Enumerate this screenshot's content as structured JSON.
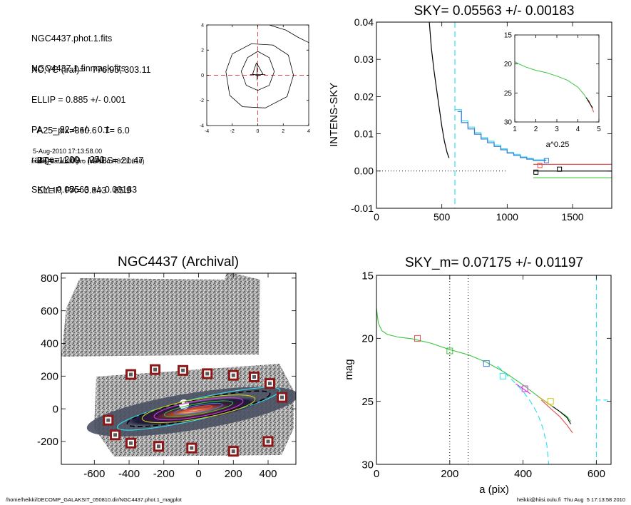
{
  "info": {
    "lines_a": [
      "NGC4437.phot.1.fits",
      "NGC4437.1.finmask.fits"
    ],
    "lines_b": [
      "XC,YC (iraf)=   776.95, 303.11",
      "ELLIP = 0.885 +/- 0.001",
      "PA    = 82.4 +/-   0.1",
      "range=  200.-  250.",
      "SKY= 0.05563 +/- 0.00183"
    ],
    "lines_c": [
      "A25_pix=360.6   T= 6.0",
      "BT=  11.09   MABS=-21.47",
      "ELLIP, PA= 0.843   85.9"
    ],
    "date": "5-Aug-2010 17:13:58.00",
    "program": "make_datalist0.pro (version HS230610)"
  },
  "footer": {
    "left": "/home/heikki/DECOMP_GALAKSIT_050810.dir/NGC4437.phot.1_magplot",
    "right": "heikki@hiisi.oulu.fi  Thu Aug  5 17:13:58 2010"
  },
  "colors": {
    "cyan": "#33e0ee",
    "red": "#e24a4a",
    "green": "#3ec43e",
    "blue": "#3a78d6",
    "magenta": "#d23ad2",
    "yellow": "#c7c71c",
    "marker_dark": "#8c1717"
  },
  "chart_data": [
    {
      "id": "centering",
      "type": "contour",
      "xlim": [
        -4,
        4
      ],
      "ylim": [
        -4,
        4
      ],
      "xticks": [
        -4,
        -2,
        0,
        2,
        4
      ],
      "yticks": [
        -4,
        -2,
        0,
        2,
        4
      ],
      "contours": [
        [
          [
            -0.1,
            1.0
          ],
          [
            0.4,
            0.1
          ],
          [
            0,
            -0.05
          ],
          [
            -0.4,
            0.1
          ],
          [
            -0.1,
            1.0
          ]
        ],
        [
          [
            -1.3,
            0.3
          ],
          [
            -0.8,
            1.4
          ],
          [
            0,
            1.9
          ],
          [
            0.9,
            1.4
          ],
          [
            1.3,
            0.3
          ],
          [
            0.9,
            -0.8
          ],
          [
            0,
            -1.2
          ],
          [
            -0.9,
            -0.8
          ],
          [
            -1.3,
            0.3
          ]
        ],
        [
          [
            -2.5,
            0.3
          ],
          [
            -2.0,
            1.7
          ],
          [
            -0.5,
            2.5
          ],
          [
            1.2,
            2.4
          ],
          [
            2.4,
            1.6
          ],
          [
            2.8,
            0.0
          ],
          [
            2.3,
            -1.7
          ],
          [
            0.6,
            -2.6
          ],
          [
            -1.2,
            -2.5
          ],
          [
            -2.2,
            -1.6
          ],
          [
            -2.5,
            0.3
          ]
        ],
        [
          [
            0.9,
            4.0
          ],
          [
            2.2,
            3.6
          ],
          [
            3.2,
            3.0
          ],
          [
            4.0,
            2.6
          ]
        ]
      ]
    },
    {
      "id": "sky",
      "type": "line",
      "title": "SKY= 0.05563 +/- 0.00183",
      "ylabel": "INTENS-SKY",
      "xlim": [
        0,
        1800
      ],
      "ylim": [
        -0.01,
        0.04
      ],
      "xticks": [
        0,
        500,
        1000,
        1500
      ],
      "yticks": [
        -0.01,
        0.0,
        0.01,
        0.02,
        0.03,
        0.04
      ],
      "ytick_labels": [
        "-0.01",
        "0.00",
        "0.01",
        "0.02",
        "0.03",
        "0.04"
      ],
      "vline": 600,
      "series": [
        {
          "color": "#000000",
          "x": [
            400,
            420,
            440,
            460,
            480,
            500,
            520,
            540,
            555
          ],
          "y": [
            0.042,
            0.033,
            0.027,
            0.022,
            0.017,
            0.012,
            0.008,
            0.005,
            0.0035
          ]
        },
        {
          "color": "#33e0ee",
          "x": [
            600,
            650,
            650,
            700,
            700,
            750,
            750,
            800,
            800,
            850,
            850,
            900,
            900,
            950,
            950,
            1000,
            1000,
            1050,
            1050,
            1100,
            1100,
            1150,
            1150,
            1200,
            1200,
            1300
          ],
          "y": [
            0.0165,
            0.0165,
            0.0135,
            0.0135,
            0.0118,
            0.0118,
            0.0103,
            0.0103,
            0.009,
            0.009,
            0.008,
            0.008,
            0.007,
            0.007,
            0.006,
            0.006,
            0.005,
            0.005,
            0.0045,
            0.0045,
            0.0038,
            0.0038,
            0.0034,
            0.0034,
            0.003,
            0.003
          ]
        },
        {
          "color": "#3a78d6",
          "x": [
            620,
            650,
            650,
            700,
            700,
            750,
            750,
            800,
            800,
            850,
            850,
            900,
            900,
            950,
            950,
            1000,
            1000,
            1050,
            1050,
            1100,
            1100,
            1150,
            1150,
            1200,
            1200,
            1300
          ],
          "y": [
            0.016,
            0.016,
            0.013,
            0.013,
            0.0113,
            0.0113,
            0.0099,
            0.0099,
            0.0086,
            0.0086,
            0.0076,
            0.0076,
            0.0066,
            0.0066,
            0.0057,
            0.0057,
            0.0048,
            0.0048,
            0.0042,
            0.0042,
            0.0036,
            0.0036,
            0.0032,
            0.0032,
            0.0028,
            0.0028
          ]
        },
        {
          "color": "#000000",
          "x": [
            1200,
            1800
          ],
          "y": [
            0.0,
            0.0
          ]
        },
        {
          "color": "#e24a4a",
          "x": [
            1200,
            1800
          ],
          "y": [
            0.0018,
            0.0018
          ]
        },
        {
          "color": "#3ec43e",
          "x": [
            1200,
            1800
          ],
          "y": [
            -0.0018,
            -0.0018
          ]
        }
      ],
      "dotted_zero": [
        0,
        1000
      ],
      "markers": [
        {
          "x": 1220,
          "y": -0.0003,
          "color": "#000000"
        },
        {
          "x": 1250,
          "y": 0.0015,
          "color": "#e24a4a"
        },
        {
          "x": 1300,
          "y": 0.0028,
          "color": "#3a78d6"
        },
        {
          "x": 1400,
          "y": 0.0005,
          "color": "#000000"
        }
      ]
    },
    {
      "id": "sky_inset",
      "type": "line",
      "xlabel": "a^0.25",
      "xlim": [
        1,
        5
      ],
      "ylim": [
        30,
        15
      ],
      "xticks": [
        1,
        2,
        3,
        4,
        5
      ],
      "yticks": [
        15,
        20,
        25,
        30
      ],
      "series": [
        {
          "color": "#3ec43e",
          "x": [
            1.0,
            1.2,
            1.5,
            2.0,
            2.5,
            3.0,
            3.5,
            4.0,
            4.3,
            4.5,
            4.7
          ],
          "y": [
            19.6,
            20.0,
            20.5,
            21.1,
            21.5,
            22.1,
            22.8,
            24.0,
            25.3,
            26.5,
            27.5
          ]
        },
        {
          "color": "#e24a4a",
          "x": [
            4.5,
            4.6,
            4.7,
            4.75
          ],
          "y": [
            26.2,
            27.0,
            27.8,
            28.3
          ]
        },
        {
          "color": "#000000",
          "x": [
            4.4,
            4.55,
            4.7
          ],
          "y": [
            25.8,
            26.7,
            27.6
          ]
        }
      ]
    },
    {
      "id": "image",
      "type": "image",
      "title": "NGC4437 (Archival)",
      "xlim": [
        -790,
        560
      ],
      "ylim": [
        -340,
        830
      ],
      "xticks": [
        -600,
        -400,
        -200,
        0,
        200,
        400
      ],
      "yticks": [
        -200,
        0,
        200,
        400,
        600,
        800
      ],
      "ellipses": [
        {
          "a": 480,
          "b": 64,
          "pa": -13,
          "color": "#33e0ee",
          "dash": false
        },
        {
          "a": 420,
          "b": 58,
          "pa": -12,
          "color": "#000000",
          "dash": true
        },
        {
          "a": 330,
          "b": 60,
          "pa": -10,
          "color": "#c7c71c",
          "dash": false
        },
        {
          "a": 260,
          "b": 48,
          "pa": -10,
          "color": "#d23ad2",
          "dash": false
        },
        {
          "a": 200,
          "b": 32,
          "pa": -10,
          "color": "#3ec43e",
          "dash": false
        },
        {
          "a": 140,
          "b": 22,
          "pa": -10,
          "color": "#3a78d6",
          "dash": false
        },
        {
          "a": 80,
          "b": 12,
          "pa": -10,
          "color": "#e24a4a",
          "dash": false
        }
      ],
      "sky_boxes": [
        [
          -390,
          210
        ],
        [
          -250,
          240
        ],
        [
          -90,
          235
        ],
        [
          50,
          215
        ],
        [
          200,
          205
        ],
        [
          320,
          195
        ],
        [
          410,
          155
        ],
        [
          480,
          70
        ],
        [
          -520,
          -70
        ],
        [
          -480,
          -160
        ],
        [
          -390,
          -210
        ],
        [
          -230,
          -230
        ],
        [
          -40,
          -240
        ],
        [
          200,
          -260
        ],
        [
          400,
          -200
        ]
      ]
    },
    {
      "id": "mag",
      "type": "line",
      "title": "SKY_m=  0.07175 +/- 0.01197",
      "xlabel": "a (pix)",
      "ylabel": "mag",
      "xlim": [
        0,
        640
      ],
      "ylim": [
        30,
        15
      ],
      "xticks": [
        0,
        200,
        400,
        600
      ],
      "yticks": [
        15,
        20,
        25,
        30
      ],
      "vlines_dotted": [
        200,
        250
      ],
      "vline_dashed": 600,
      "series": [
        {
          "color": "#3ec43e",
          "x": [
            0,
            5,
            15,
            30,
            60,
            100,
            150,
            200,
            250,
            300,
            350,
            400,
            450,
            480,
            500,
            520,
            530
          ],
          "y": [
            17.6,
            18.8,
            19.4,
            19.7,
            19.9,
            20.05,
            20.4,
            20.9,
            21.3,
            21.9,
            22.7,
            23.7,
            24.8,
            25.4,
            25.8,
            26.2,
            26.6
          ]
        },
        {
          "color": "#000000",
          "x": [
            440,
            470,
            500,
            520,
            530
          ],
          "y": [
            24.6,
            25.2,
            25.8,
            26.3,
            26.8
          ]
        },
        {
          "color": "#e24a4a",
          "x": [
            450,
            480,
            500,
            520,
            535
          ],
          "y": [
            24.9,
            25.7,
            26.2,
            26.9,
            27.5
          ]
        },
        {
          "color": "#d23ad2",
          "x": [
            380,
            400,
            420
          ],
          "y": [
            23.6,
            24.0,
            24.4
          ]
        },
        {
          "color": "#c7c71c",
          "x": [
            440,
            460,
            480
          ],
          "y": [
            24.6,
            25.0,
            25.4
          ]
        }
      ],
      "cyan_curve": {
        "x": [
          330,
          370,
          400,
          420,
          440,
          455,
          465,
          470
        ],
        "y": [
          22.2,
          23.3,
          24.2,
          25.0,
          26.0,
          27.2,
          28.5,
          30.0
        ]
      },
      "cyan_segment": {
        "x": [
          600,
          650
        ],
        "y": [
          24.9,
          24.9
        ]
      },
      "markers": [
        {
          "x": 112,
          "y": 20.0,
          "color": "#e24a4a"
        },
        {
          "x": 200,
          "y": 21.0,
          "color": "#3ec43e"
        },
        {
          "x": 300,
          "y": 22.0,
          "color": "#3a78d6"
        },
        {
          "x": 345,
          "y": 23.0,
          "color": "#33e0ee"
        },
        {
          "x": 405,
          "y": 24.0,
          "color": "#d23ad2"
        },
        {
          "x": 475,
          "y": 25.0,
          "color": "#c7c71c"
        }
      ]
    }
  ]
}
